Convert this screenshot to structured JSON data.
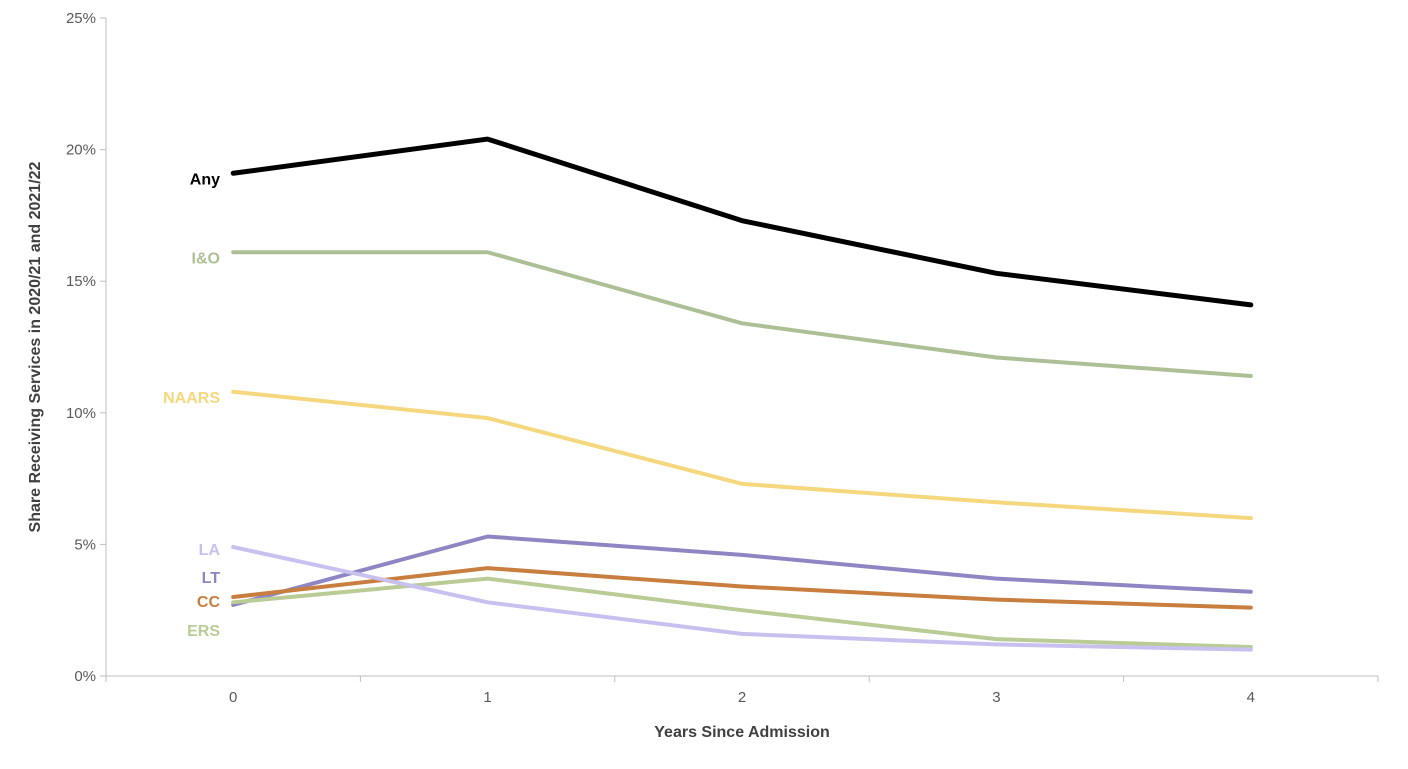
{
  "chart_data": {
    "type": "line",
    "title": "",
    "xlabel": "Years Since Admission",
    "ylabel": "Share Receiving Services in 2020/21 and 2021/22",
    "x": [
      0,
      1,
      2,
      3,
      4
    ],
    "x_tick_labels": [
      "0",
      "1",
      "2",
      "3",
      "4"
    ],
    "y_tick_labels": [
      "0%",
      "5%",
      "10%",
      "15%",
      "20%",
      "25%"
    ],
    "ylim": [
      0,
      25
    ],
    "y_tick_step": 5,
    "grid": false,
    "legend_position": "inline-left-labels",
    "axis_color": "#bfbfbf",
    "tick_label_color": "#595959",
    "axis_title_color": "#404040",
    "series": [
      {
        "name": "Any",
        "color": "#000000",
        "width": 5,
        "label_y_pct": 18.9,
        "values": [
          19.1,
          20.4,
          17.3,
          15.3,
          14.1
        ]
      },
      {
        "name": "I&O",
        "color": "#adc095",
        "width": 4,
        "label_y_pct": 15.9,
        "values": [
          16.1,
          16.1,
          13.4,
          12.1,
          11.4
        ]
      },
      {
        "name": "NAARS",
        "color": "#f5d77d",
        "width": 4,
        "label_y_pct": 10.6,
        "values": [
          10.8,
          9.8,
          7.3,
          6.6,
          6.0
        ]
      },
      {
        "name": "LT",
        "color": "#8e86c3",
        "width": 4,
        "label_y_pct": 3.76,
        "values": [
          2.7,
          5.3,
          4.6,
          3.7,
          3.2
        ]
      },
      {
        "name": "CC",
        "color": "#c77e3e",
        "width": 4,
        "label_y_pct": 2.85,
        "values": [
          3.0,
          4.1,
          3.4,
          2.9,
          2.6
        ]
      },
      {
        "name": "ERS",
        "color": "#b9cc96",
        "width": 4,
        "label_y_pct": 1.75,
        "values": [
          2.8,
          3.7,
          2.5,
          1.4,
          1.1
        ]
      },
      {
        "name": "LA",
        "color": "#c8c1ef",
        "width": 4,
        "label_y_pct": 4.83,
        "values": [
          4.9,
          2.8,
          1.6,
          1.2,
          1.0
        ]
      }
    ]
  }
}
